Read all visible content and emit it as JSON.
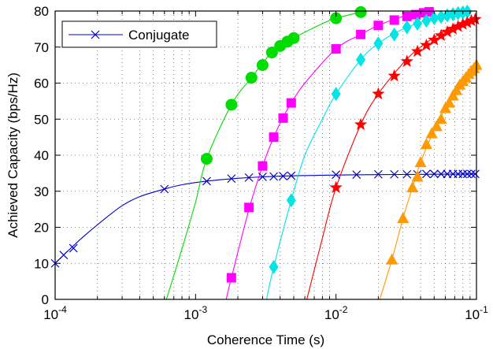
{
  "chart_data": {
    "type": "line",
    "xscale": "log",
    "xlim": [
      0.0001,
      0.1
    ],
    "ylim": [
      0,
      80
    ],
    "xlabel": "Coherence Time (s)",
    "ylabel": "Achieved Capacity (bps/Hz)",
    "grid": true,
    "legend_position": "top-left",
    "x_ticks": [
      {
        "value": 0.0001,
        "base": "10",
        "exp": "-4"
      },
      {
        "value": 0.001,
        "base": "10",
        "exp": "-3"
      },
      {
        "value": 0.01,
        "base": "10",
        "exp": "-2"
      },
      {
        "value": 0.1,
        "base": "10",
        "exp": "-1"
      }
    ],
    "y_ticks": [
      0,
      10,
      20,
      30,
      40,
      50,
      60,
      70,
      80
    ],
    "series": [
      {
        "name": "Conjugate",
        "in_legend": true,
        "color": "#0000cc",
        "marker": "x",
        "curve": [
          [
            0.0001,
            10
          ],
          [
            0.00012,
            13
          ],
          [
            0.00016,
            17.5
          ],
          [
            0.00022,
            22
          ],
          [
            0.0003,
            26
          ],
          [
            0.0004,
            28.5
          ],
          [
            0.0006,
            30.6
          ],
          [
            0.0008,
            31.8
          ],
          [
            0.0012,
            32.8
          ],
          [
            0.002,
            33.6
          ],
          [
            0.004,
            34.2
          ],
          [
            0.01,
            34.5
          ],
          [
            0.02,
            34.6
          ],
          [
            0.1,
            34.8
          ]
        ],
        "markers": [
          [
            0.0001,
            10
          ],
          [
            0.000115,
            12.3
          ],
          [
            0.000135,
            14.2
          ],
          [
            0.0006,
            30.6
          ],
          [
            0.0012,
            32.8
          ],
          [
            0.0018,
            33.5
          ],
          [
            0.0024,
            33.8
          ],
          [
            0.003,
            34.0
          ],
          [
            0.0036,
            34.1
          ],
          [
            0.0042,
            34.2
          ],
          [
            0.0048,
            34.3
          ],
          [
            0.01,
            34.6
          ],
          [
            0.014,
            34.6
          ],
          [
            0.02,
            34.7
          ],
          [
            0.026,
            34.7
          ],
          [
            0.032,
            34.7
          ],
          [
            0.038,
            34.7
          ],
          [
            0.044,
            34.8
          ],
          [
            0.05,
            34.8
          ],
          [
            0.056,
            34.8
          ],
          [
            0.062,
            34.8
          ],
          [
            0.068,
            34.8
          ],
          [
            0.074,
            34.8
          ],
          [
            0.08,
            34.8
          ],
          [
            0.086,
            34.8
          ],
          [
            0.092,
            34.8
          ],
          [
            0.098,
            34.8
          ]
        ]
      },
      {
        "in_legend": false,
        "color": "#00dd00",
        "marker": "circle",
        "curve": [
          [
            0.00062,
            0
          ],
          [
            0.0008,
            14
          ],
          [
            0.001,
            27
          ],
          [
            0.0012,
            39
          ],
          [
            0.0018,
            54
          ],
          [
            0.0025,
            61.5
          ],
          [
            0.0035,
            68.5
          ],
          [
            0.005,
            72.5
          ],
          [
            0.008,
            76.5
          ],
          [
            0.01,
            78
          ],
          [
            0.015,
            79.7
          ]
        ],
        "markers": [
          [
            0.0012,
            39
          ],
          [
            0.0018,
            54
          ],
          [
            0.0025,
            61.5
          ],
          [
            0.003,
            65
          ],
          [
            0.0035,
            68.5
          ],
          [
            0.004,
            70.3
          ],
          [
            0.0045,
            71.5
          ],
          [
            0.005,
            72.5
          ],
          [
            0.01,
            78
          ],
          [
            0.015,
            79.7
          ]
        ]
      },
      {
        "in_legend": false,
        "color": "#ff00ff",
        "marker": "square",
        "curve": [
          [
            0.00165,
            0
          ],
          [
            0.0018,
            6
          ],
          [
            0.0024,
            25
          ],
          [
            0.003,
            37
          ],
          [
            0.0036,
            45
          ],
          [
            0.0042,
            50.5
          ],
          [
            0.0048,
            54.5
          ],
          [
            0.006,
            60
          ],
          [
            0.01,
            69.5
          ],
          [
            0.015,
            73.5
          ],
          [
            0.02,
            76
          ],
          [
            0.03,
            78.5
          ],
          [
            0.045,
            80
          ]
        ],
        "markers": [
          [
            0.0018,
            6
          ],
          [
            0.0024,
            25.5
          ],
          [
            0.003,
            37
          ],
          [
            0.0036,
            45
          ],
          [
            0.0042,
            50.3
          ],
          [
            0.0048,
            54.5
          ],
          [
            0.01,
            69.5
          ],
          [
            0.015,
            73.5
          ],
          [
            0.02,
            76
          ],
          [
            0.026,
            77.5
          ],
          [
            0.032,
            78.5
          ],
          [
            0.037,
            79
          ],
          [
            0.042,
            79.5
          ],
          [
            0.046,
            79.8
          ]
        ]
      },
      {
        "in_legend": false,
        "color": "#00e5e5",
        "marker": "diamond",
        "curve": [
          [
            0.0032,
            0
          ],
          [
            0.0036,
            9
          ],
          [
            0.0048,
            27.5
          ],
          [
            0.006,
            40
          ],
          [
            0.008,
            50
          ],
          [
            0.01,
            57
          ],
          [
            0.015,
            66.5
          ],
          [
            0.02,
            71
          ],
          [
            0.03,
            75
          ],
          [
            0.05,
            78
          ],
          [
            0.09,
            80
          ]
        ],
        "markers": [
          [
            0.0036,
            9
          ],
          [
            0.0048,
            27.5
          ],
          [
            0.01,
            57
          ],
          [
            0.015,
            66.5
          ],
          [
            0.02,
            71
          ],
          [
            0.026,
            73.5
          ],
          [
            0.032,
            75.5
          ],
          [
            0.038,
            76.5
          ],
          [
            0.044,
            77.3
          ],
          [
            0.05,
            78
          ],
          [
            0.056,
            78.4
          ],
          [
            0.062,
            78.8
          ],
          [
            0.068,
            79.1
          ],
          [
            0.074,
            79.4
          ],
          [
            0.08,
            79.6
          ],
          [
            0.086,
            79.8
          ]
        ]
      },
      {
        "in_legend": false,
        "color": "#ff0000",
        "marker": "star",
        "curve": [
          [
            0.0062,
            0
          ],
          [
            0.008,
            17
          ],
          [
            0.01,
            31
          ],
          [
            0.015,
            48.5
          ],
          [
            0.02,
            57
          ],
          [
            0.03,
            65.5
          ],
          [
            0.04,
            70
          ],
          [
            0.06,
            74.5
          ],
          [
            0.1,
            78
          ]
        ],
        "markers": [
          [
            0.01,
            31
          ],
          [
            0.015,
            48.5
          ],
          [
            0.02,
            57
          ],
          [
            0.026,
            62
          ],
          [
            0.032,
            66
          ],
          [
            0.038,
            68.8
          ],
          [
            0.044,
            70.5
          ],
          [
            0.05,
            72
          ],
          [
            0.056,
            73.2
          ],
          [
            0.062,
            74.2
          ],
          [
            0.068,
            75
          ],
          [
            0.074,
            75.7
          ],
          [
            0.08,
            76.3
          ],
          [
            0.086,
            76.8
          ],
          [
            0.092,
            77.3
          ],
          [
            0.098,
            77.7
          ]
        ]
      },
      {
        "in_legend": false,
        "color": "#ff9900",
        "marker": "triangle",
        "curve": [
          [
            0.0205,
            0
          ],
          [
            0.025,
            11
          ],
          [
            0.03,
            22.5
          ],
          [
            0.035,
            31
          ],
          [
            0.04,
            38
          ],
          [
            0.05,
            47
          ],
          [
            0.06,
            53
          ],
          [
            0.07,
            57.5
          ],
          [
            0.08,
            60.5
          ],
          [
            0.09,
            63
          ],
          [
            0.1,
            65
          ]
        ],
        "markers": [
          [
            0.025,
            11
          ],
          [
            0.03,
            22.5
          ],
          [
            0.035,
            31
          ],
          [
            0.038,
            34
          ],
          [
            0.04,
            38
          ],
          [
            0.044,
            43
          ],
          [
            0.048,
            46
          ],
          [
            0.052,
            48
          ],
          [
            0.056,
            50
          ],
          [
            0.06,
            53
          ],
          [
            0.064,
            54.5
          ],
          [
            0.068,
            56.5
          ],
          [
            0.072,
            58
          ],
          [
            0.076,
            59.5
          ],
          [
            0.08,
            60.5
          ],
          [
            0.084,
            61.5
          ],
          [
            0.088,
            62.5
          ],
          [
            0.092,
            63.3
          ],
          [
            0.096,
            64.1
          ],
          [
            0.1,
            65
          ]
        ]
      }
    ]
  }
}
